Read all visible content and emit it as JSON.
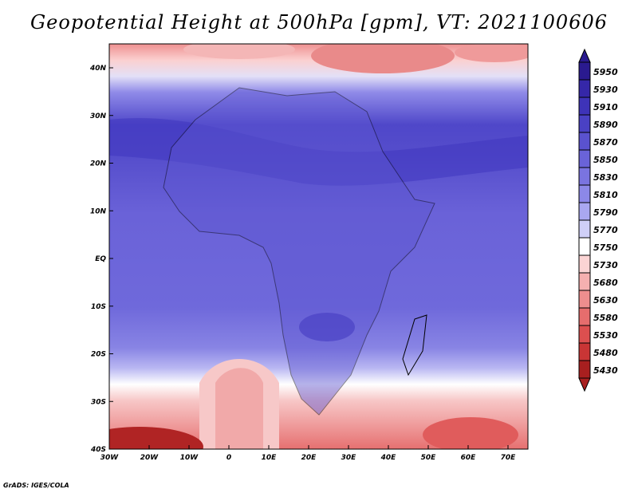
{
  "title": "Geopotential Height at 500hPa [gpm], VT: 2021100606",
  "credit": "GrADS: IGES/COLA",
  "map": {
    "lat_labels": [
      "40N",
      "30N",
      "20N",
      "10N",
      "EQ",
      "10S",
      "20S",
      "30S",
      "40S"
    ],
    "lon_labels": [
      "30W",
      "20W",
      "10W",
      "0",
      "10E",
      "20E",
      "30E",
      "40E",
      "50E",
      "60E",
      "70E"
    ],
    "region": "Africa and surrounding oceans",
    "projection": "latlon",
    "extent": {
      "lon": [
        -30,
        75
      ],
      "lat": [
        -40,
        45
      ]
    }
  },
  "colorbar": {
    "levels": [
      "5950",
      "5930",
      "5910",
      "5890",
      "5870",
      "5850",
      "5830",
      "5810",
      "5790",
      "5770",
      "5750",
      "5730",
      "5680",
      "5630",
      "5580",
      "5530",
      "5480",
      "5430"
    ],
    "colors": [
      "#2a1a8f",
      "#3527a8",
      "#3e33b8",
      "#4a41c4",
      "#5a52cf",
      "#6a63d8",
      "#7a74e0",
      "#8c88e8",
      "#a9a7f0",
      "#cfcff7",
      "#ffffff",
      "#fbd4d4",
      "#f5b0b0",
      "#ee8e8e",
      "#e66d6d",
      "#dc4f4f",
      "#c93535",
      "#a81f1f"
    ]
  }
}
